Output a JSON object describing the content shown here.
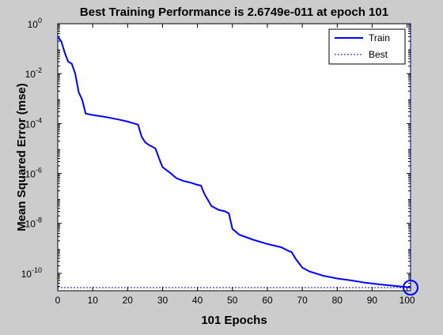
{
  "chart_data": {
    "type": "line",
    "title": "Best Training Performance is 2.6749e-011 at epoch 101",
    "xlabel": "101 Epochs",
    "ylabel": "Mean Squared Error  (mse)",
    "xlim": [
      0,
      101
    ],
    "ylim": [
      2e-11,
      1
    ],
    "yscale": "log",
    "xticks": [
      0,
      10,
      20,
      30,
      40,
      50,
      60,
      70,
      80,
      90,
      100
    ],
    "yticks": [
      {
        "value": 1,
        "base": "10",
        "exp": "0"
      },
      {
        "value": 0.01,
        "base": "10",
        "exp": "-2"
      },
      {
        "value": 0.0001,
        "base": "10",
        "exp": "-4"
      },
      {
        "value": 1e-06,
        "base": "10",
        "exp": "-6"
      },
      {
        "value": 1e-08,
        "base": "10",
        "exp": "-8"
      },
      {
        "value": 1e-10,
        "base": "10",
        "exp": "-10"
      }
    ],
    "grid": false,
    "legend_position": "top-right",
    "series": [
      {
        "name": "Train",
        "color": "#0000ff",
        "style": "solid",
        "x": [
          0,
          1,
          2,
          3,
          4,
          5,
          6,
          7,
          8,
          10,
          14,
          18,
          20,
          22,
          23,
          24,
          25,
          26,
          27,
          28,
          29,
          30,
          32,
          34,
          36,
          38,
          40,
          41,
          42,
          44,
          46,
          48,
          49,
          50,
          52,
          56,
          60,
          64,
          66,
          67,
          68,
          70,
          72,
          76,
          80,
          84,
          88,
          92,
          96,
          100,
          101
        ],
        "y": [
          0.3,
          0.2,
          0.07,
          0.03,
          0.025,
          0.01,
          0.0018,
          0.0009,
          0.00025,
          0.00022,
          0.00018,
          0.00014,
          0.00012,
          0.0001,
          9e-05,
          3e-05,
          1.8e-05,
          1.4e-05,
          1.2e-05,
          1e-05,
          4e-06,
          1.8e-06,
          1.1e-06,
          6.5e-07,
          5e-07,
          4.3e-07,
          3.5e-07,
          3.3e-07,
          1.5e-07,
          5e-08,
          3.5e-08,
          3e-08,
          2.5e-08,
          6e-09,
          3.5e-09,
          2.2e-09,
          1.5e-09,
          1.1e-09,
          8e-10,
          7e-10,
          4e-10,
          1.7e-10,
          1.2e-10,
          8e-11,
          6.2e-11,
          5.2e-11,
          4.2e-11,
          3.6e-11,
          3.2e-11,
          2.8e-11,
          2.67e-11
        ]
      },
      {
        "name": "Best",
        "color": "#0000ff",
        "style": "dotted",
        "value": 2.6749e-11,
        "epoch": 101
      }
    ],
    "legend": [
      {
        "label": "Train",
        "style": "solid"
      },
      {
        "label": "Best",
        "style": "dotted"
      }
    ]
  }
}
